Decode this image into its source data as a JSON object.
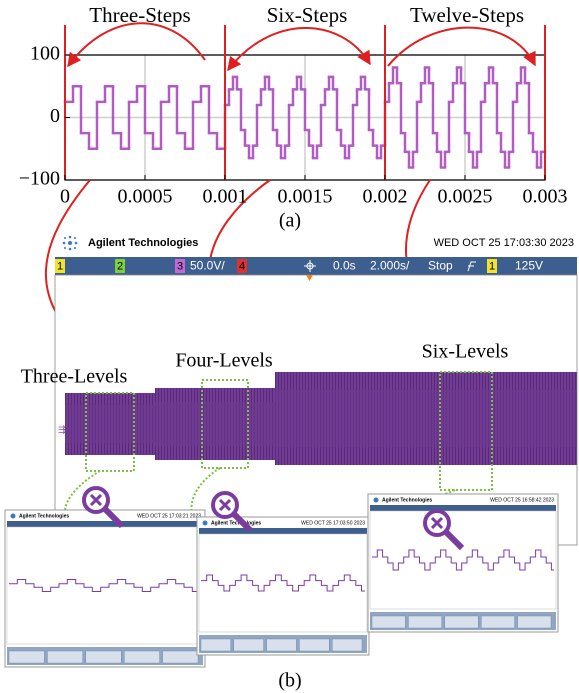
{
  "chart_data": {
    "type": "line",
    "step": "post",
    "annotations": [
      "Three-Steps",
      "Six-Steps",
      "Twelve-Steps"
    ],
    "caption": "(a)",
    "color": "#b05cc0",
    "grid": true,
    "xlim": [
      0,
      0.003
    ],
    "ylim": [
      -100,
      100
    ],
    "xticks": [
      0,
      0.0005,
      0.001,
      0.0015,
      0.002,
      0.0025,
      0.003
    ],
    "yticks": [
      100,
      0,
      {
        "value": -100,
        "label": "−100"
      }
    ],
    "x": [
      0,
      5e-05,
      0.0001,
      0.00015,
      0.0002,
      0.00025,
      0.0003,
      0.00035,
      0.0004,
      0.00045,
      0.0005,
      0.00055,
      0.0006,
      0.00065,
      0.0007,
      0.00075,
      0.0008,
      0.00085,
      0.0009,
      0.00095,
      0.001,
      0.001025,
      0.00105,
      0.001075,
      0.0011,
      0.001125,
      0.00115,
      0.001175,
      0.0012,
      0.001225,
      0.00125,
      0.001275,
      0.0013,
      0.001325,
      0.00135,
      0.001375,
      0.0014,
      0.001425,
      0.00145,
      0.001475,
      0.0015,
      0.001525,
      0.00155,
      0.001575,
      0.0016,
      0.001625,
      0.00165,
      0.001675,
      0.0017,
      0.001725,
      0.00175,
      0.001775,
      0.0018,
      0.001825,
      0.00185,
      0.001875,
      0.0019,
      0.001925,
      0.00195,
      0.001975,
      0.002,
      0.002025,
      0.00205,
      0.002075,
      0.0021,
      0.002125,
      0.00215,
      0.002175,
      0.0022,
      0.002225,
      0.00225,
      0.002275,
      0.0023,
      0.002325,
      0.00235,
      0.002375,
      0.0024,
      0.002425,
      0.00245,
      0.002475,
      0.0025,
      0.002525,
      0.00255,
      0.002575,
      0.0026,
      0.002625,
      0.00265,
      0.002675,
      0.0027,
      0.002725,
      0.00275,
      0.002775,
      0.0028,
      0.002825,
      0.00285,
      0.002875,
      0.0029,
      0.002925,
      0.00295,
      0.002975
    ],
    "values": [
      25,
      50,
      -25,
      -50,
      25,
      50,
      -25,
      -50,
      25,
      50,
      -25,
      -50,
      25,
      50,
      -25,
      -50,
      25,
      50,
      -25,
      -50,
      20,
      45,
      65,
      45,
      -20,
      -45,
      -65,
      -45,
      20,
      45,
      65,
      45,
      -20,
      -45,
      -65,
      -45,
      20,
      45,
      65,
      45,
      -20,
      -45,
      -65,
      -45,
      20,
      45,
      65,
      45,
      -20,
      -45,
      -65,
      -45,
      20,
      45,
      65,
      45,
      -20,
      -45,
      -65,
      -45,
      25,
      55,
      80,
      55,
      -25,
      -55,
      -80,
      -55,
      25,
      55,
      80,
      55,
      -25,
      -55,
      -80,
      -55,
      25,
      55,
      80,
      55,
      -25,
      -55,
      -80,
      -55,
      25,
      55,
      80,
      55,
      -25,
      -55,
      -80,
      -55,
      25,
      55,
      80,
      55,
      -25,
      -55,
      -80,
      -55
    ]
  },
  "scope": {
    "brand": "Agilent Technologies",
    "date": "WED OCT 25 17:03:30 2023",
    "status": [
      "1",
      "2",
      "3",
      "50.0V/",
      "4",
      "0.0s",
      "2.000s/",
      "Stop",
      "1",
      "125V"
    ],
    "labels": [
      "Three-Levels",
      "Four-Levels",
      "Six-Levels"
    ],
    "caption": "(b)",
    "insets": [
      {
        "brand": "Agilent Technologies",
        "date": "WED OCT 25 17:03:21 2023"
      },
      {
        "brand": "Agilent Technologies",
        "date": "WED OCT 25 17:03:50 2023"
      },
      {
        "brand": "Agilent Technologies",
        "date": "WED OCT 25 16:58:42 2023"
      }
    ]
  }
}
